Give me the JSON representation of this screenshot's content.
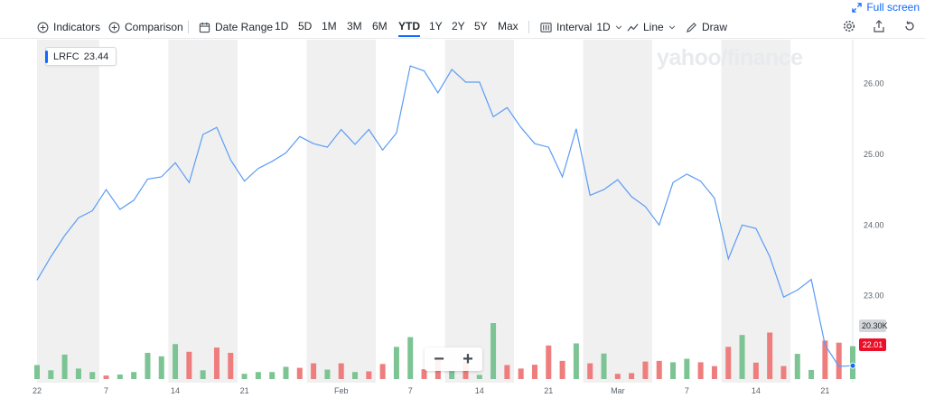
{
  "header": {
    "fullscreen_label": "Full screen"
  },
  "toolbar": {
    "indicators_label": "Indicators",
    "comparison_label": "Comparison",
    "date_range_label": "Date Range",
    "ranges": [
      "1D",
      "5D",
      "1M",
      "3M",
      "6M",
      "YTD",
      "1Y",
      "2Y",
      "5Y",
      "Max"
    ],
    "active_range": "YTD",
    "interval_label": "Interval",
    "interval_value": "1D",
    "line_label": "Line",
    "draw_label": "Draw"
  },
  "legend": {
    "symbol": "LRFC",
    "price": "23.44"
  },
  "watermark": "yahoo/finance",
  "badges": {
    "volume": "20.30K",
    "last_price": "22.01"
  },
  "zoom": {
    "minus": "−",
    "plus": "+"
  },
  "colors": {
    "line": "#5b9cf5",
    "up": "#7cc493",
    "down": "#ee7d7d",
    "band": "#f0f0f0",
    "accent": "#0f69ff"
  },
  "chart_data": {
    "type": "line",
    "series": [
      {
        "values": [
          23.22,
          23.55,
          23.85,
          24.1,
          24.2,
          24.5,
          24.22,
          24.35,
          24.65,
          24.68,
          24.88,
          24.6,
          25.28,
          25.38,
          24.92,
          24.62,
          24.8,
          24.9,
          25.02,
          25.25,
          25.15,
          25.1,
          25.35,
          25.14,
          25.35,
          25.06,
          25.3,
          26.25,
          26.18,
          25.87,
          26.2,
          26.02,
          26.02,
          25.53,
          25.66,
          25.38,
          25.15,
          25.1,
          24.68,
          25.36,
          24.42,
          24.5,
          24.64,
          24.4,
          24.26,
          24.0,
          24.6,
          24.72,
          24.62,
          24.38,
          23.52,
          24.0,
          23.95,
          23.55,
          22.98,
          23.08,
          23.23,
          22.3,
          22.0,
          22.01
        ]
      }
    ],
    "volume": [
      4,
      2.5,
      7,
      3,
      2,
      1,
      1.3,
      2,
      7.5,
      6.5,
      10,
      7.8,
      2.5,
      9,
      7.5,
      1.5,
      2,
      2,
      3.5,
      3.2,
      4.5,
      2.7,
      4.5,
      2,
      2.2,
      4.3,
      9.2,
      12,
      2.8,
      5.5,
      2.3,
      5,
      1.2,
      16,
      4,
      3,
      4.1,
      9.6,
      5.2,
      10.2,
      4.5,
      7.3,
      1.5,
      1.7,
      5,
      5.2,
      4.8,
      5.8,
      4.8,
      3.7,
      9.2,
      12.6,
      4.7,
      13.3,
      3.7,
      7.2,
      2.6,
      11,
      10.4,
      9.4
    ],
    "volume_up": [
      true,
      true,
      true,
      true,
      true,
      false,
      true,
      true,
      true,
      true,
      true,
      false,
      true,
      false,
      false,
      true,
      true,
      true,
      true,
      false,
      false,
      true,
      false,
      true,
      false,
      false,
      true,
      true,
      false,
      false,
      true,
      false,
      true,
      true,
      false,
      false,
      false,
      false,
      false,
      true,
      false,
      true,
      false,
      false,
      false,
      false,
      true,
      true,
      false,
      false,
      false,
      true,
      false,
      false,
      false,
      true,
      true,
      false,
      false,
      true
    ],
    "x_tick_labels": [
      {
        "label": "22",
        "index": 0
      },
      {
        "label": "7",
        "index": 5
      },
      {
        "label": "14",
        "index": 10
      },
      {
        "label": "21",
        "index": 15
      },
      {
        "label": "Feb",
        "index": 22
      },
      {
        "label": "7",
        "index": 27
      },
      {
        "label": "14",
        "index": 32
      },
      {
        "label": "21",
        "index": 37
      },
      {
        "label": "Mar",
        "index": 42
      },
      {
        "label": "7",
        "index": 47
      },
      {
        "label": "14",
        "index": 52
      },
      {
        "label": "21",
        "index": 57
      }
    ],
    "y_ticks": [
      "26.00",
      "25.00",
      "24.00",
      "23.00"
    ],
    "ylim": [
      21.77,
      26.62
    ],
    "grid": "alternating-week-bands"
  }
}
